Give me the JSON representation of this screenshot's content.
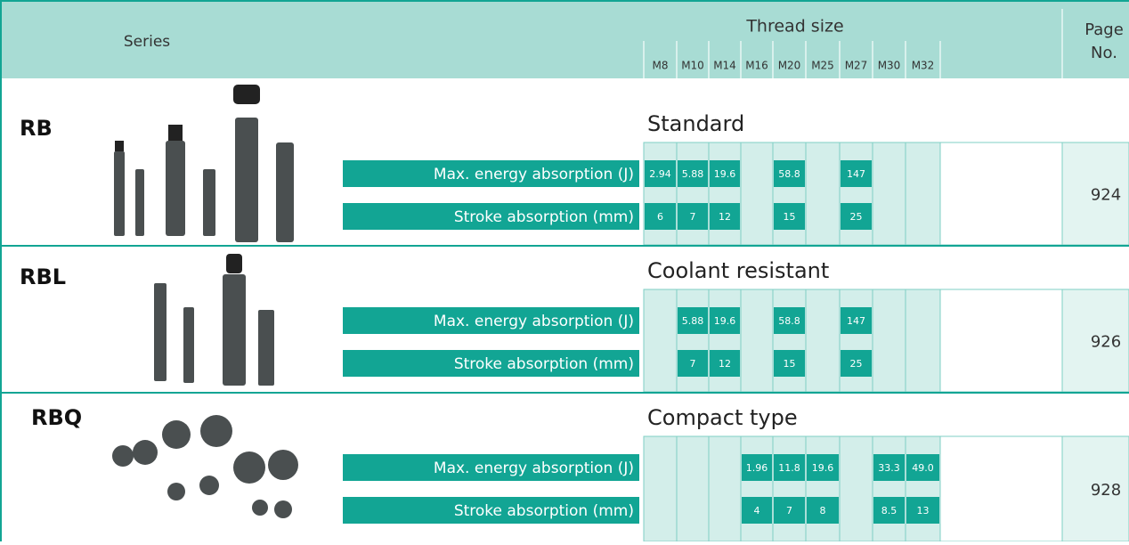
{
  "header": {
    "series": "Series",
    "thread_size": "Thread size",
    "page": "Page",
    "page_no": "No.",
    "sizes": [
      "M8",
      "M10",
      "M14",
      "M16",
      "M20",
      "M25",
      "M27",
      "M30",
      "M32"
    ]
  },
  "rows": [
    {
      "series": "RB",
      "type": "Standard",
      "energy_label": "Max. energy absorption (J)",
      "stroke_label": "Stroke absorption (mm)",
      "energy": [
        "2.94",
        "5.88",
        "19.6",
        null,
        "58.8",
        null,
        "147",
        null,
        null
      ],
      "stroke": [
        "6",
        "7",
        "12",
        null,
        "15",
        null,
        "25",
        null,
        null
      ],
      "page": "924"
    },
    {
      "series": "RBL",
      "type": "Coolant resistant",
      "energy_label": "Max. energy absorption (J)",
      "stroke_label": "Stroke absorption (mm)",
      "energy": [
        null,
        "5.88",
        "19.6",
        null,
        "58.8",
        null,
        "147",
        null,
        null
      ],
      "stroke": [
        null,
        "7",
        "12",
        null,
        "15",
        null,
        "25",
        null,
        null
      ],
      "page": "926"
    },
    {
      "series": "RBQ",
      "type": "Compact type",
      "energy_label": "Max. energy absorption (J)",
      "stroke_label": "Stroke absorption (mm)",
      "energy": [
        null,
        null,
        null,
        "1.96",
        "11.8",
        "19.6",
        null,
        "33.3",
        "49.0"
      ],
      "stroke": [
        null,
        null,
        null,
        "4",
        "7",
        "8",
        null,
        "8.5",
        "13"
      ],
      "page": "928"
    }
  ]
}
